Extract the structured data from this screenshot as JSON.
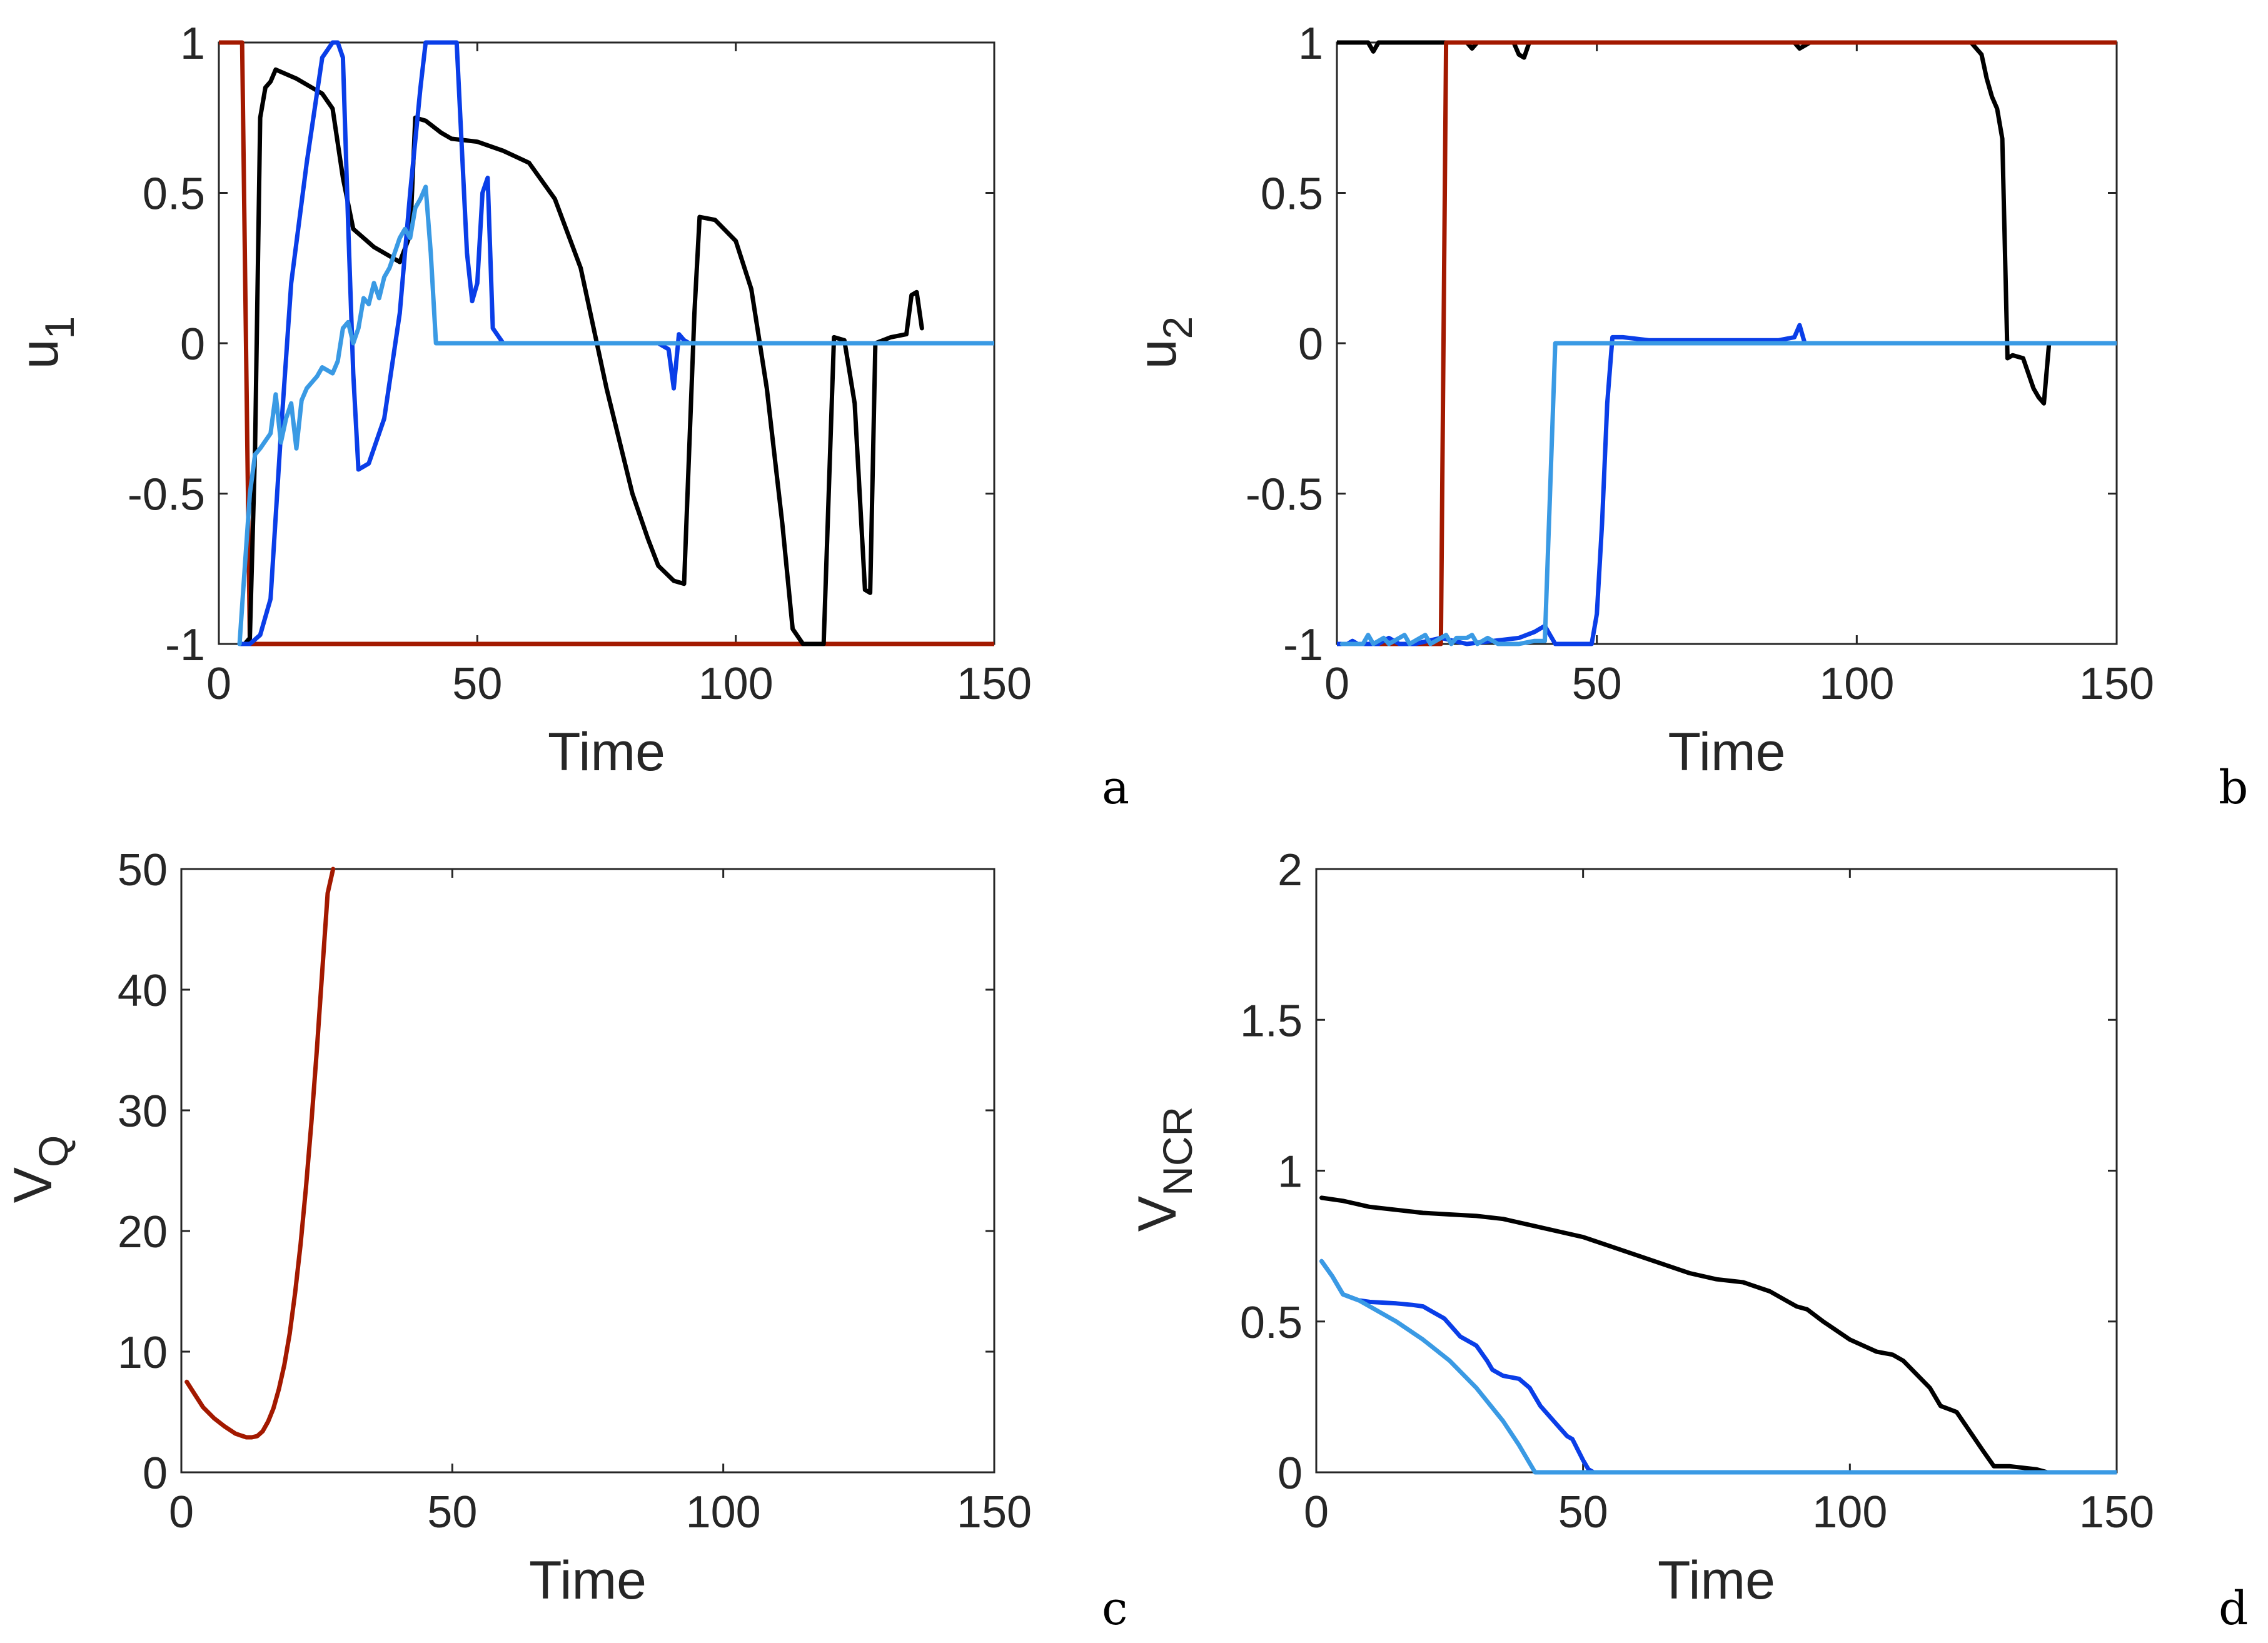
{
  "colors": {
    "black": "#000000",
    "red": "#a31900",
    "blue": "#0a3ee8",
    "lightblue": "#3a9ae4"
  },
  "chart_data": [
    {
      "panel": "a",
      "type": "line",
      "xlabel": "Time",
      "ylabel": "u",
      "ylabel_sub": "1",
      "xlim": [
        0,
        150
      ],
      "ylim": [
        -1,
        1
      ],
      "xticks": [
        "0",
        "50",
        "100",
        "150"
      ],
      "yticks": [
        "-1",
        "-0.5",
        "0",
        "0.5",
        "1"
      ],
      "series": [
        {
          "name": "red",
          "color": "#a31900",
          "x": [
            0,
            4.5,
            6,
            150
          ],
          "y": [
            1,
            1,
            -1,
            -1
          ]
        },
        {
          "name": "black",
          "color": "#000000",
          "x": [
            5,
            6,
            7,
            8,
            9,
            10,
            11,
            15,
            20,
            22,
            24,
            26,
            30,
            33,
            35,
            37,
            38,
            40,
            43,
            45,
            50,
            55,
            60,
            65,
            70,
            75,
            80,
            83,
            85,
            88,
            90,
            92,
            93,
            96,
            100,
            103,
            106,
            109,
            111,
            113,
            115,
            117,
            119,
            121,
            123,
            125,
            126,
            127,
            130,
            133,
            134,
            135,
            136
          ],
          "y": [
            -1,
            -0.98,
            -0.35,
            0.75,
            0.85,
            0.87,
            0.91,
            0.88,
            0.83,
            0.78,
            0.55,
            0.38,
            0.32,
            0.29,
            0.27,
            0.36,
            0.75,
            0.74,
            0.7,
            0.68,
            0.67,
            0.64,
            0.6,
            0.48,
            0.25,
            -0.15,
            -0.5,
            -0.65,
            -0.74,
            -0.79,
            -0.8,
            0.1,
            0.42,
            0.41,
            0.34,
            0.18,
            -0.15,
            -0.6,
            -0.95,
            -1.0,
            -1.0,
            -1.0,
            0.02,
            0.01,
            -0.2,
            -0.82,
            -0.83,
            0.0,
            0.02,
            0.03,
            0.16,
            0.17,
            0.05
          ]
        },
        {
          "name": "blue",
          "color": "#0a3ee8",
          "x": [
            4,
            6,
            8,
            10,
            12,
            14,
            17,
            20,
            22,
            23,
            24,
            25,
            26,
            27,
            28,
            29,
            30,
            32,
            35,
            37,
            39,
            40,
            41,
            42,
            45,
            46,
            48,
            49,
            50,
            51,
            52,
            53,
            55,
            60,
            70,
            80,
            85,
            87,
            88,
            89,
            90,
            91,
            92,
            100,
            150
          ],
          "y": [
            -1,
            -1,
            -0.97,
            -0.85,
            -0.3,
            0.2,
            0.6,
            0.95,
            1.0,
            1.0,
            0.95,
            0.4,
            -0.1,
            -0.42,
            -0.41,
            -0.4,
            -0.35,
            -0.25,
            0.1,
            0.5,
            0.85,
            1.0,
            1.0,
            1.0,
            1.0,
            1.0,
            0.3,
            0.14,
            0.2,
            0.5,
            0.55,
            0.05,
            0.0,
            0.0,
            0.0,
            0.0,
            0.0,
            -0.02,
            -0.15,
            0.03,
            0.01,
            0.0,
            0.0,
            0.0,
            0.0
          ]
        },
        {
          "name": "lightblue",
          "color": "#3a9ae4",
          "x": [
            4,
            5,
            6,
            7,
            8,
            10,
            11,
            12,
            13,
            14,
            15,
            16,
            17,
            18,
            19,
            20,
            21,
            22,
            23,
            24,
            25,
            26,
            27,
            28,
            29,
            30,
            31,
            32,
            33,
            34,
            35,
            36,
            37,
            38,
            39,
            40,
            41,
            42,
            43,
            150
          ],
          "y": [
            -1,
            -0.75,
            -0.5,
            -0.37,
            -0.35,
            -0.3,
            -0.17,
            -0.33,
            -0.25,
            -0.2,
            -0.35,
            -0.19,
            -0.15,
            -0.13,
            -0.11,
            -0.08,
            -0.09,
            -0.1,
            -0.06,
            0.05,
            0.07,
            0.0,
            0.05,
            0.15,
            0.13,
            0.2,
            0.15,
            0.22,
            0.25,
            0.3,
            0.35,
            0.38,
            0.35,
            0.45,
            0.48,
            0.52,
            0.3,
            0.0,
            0.0,
            0.0
          ]
        }
      ]
    },
    {
      "panel": "b",
      "type": "line",
      "xlabel": "Time",
      "ylabel": "u",
      "ylabel_sub": "2",
      "xlim": [
        0,
        150
      ],
      "ylim": [
        -1,
        1
      ],
      "xticks": [
        "0",
        "50",
        "100",
        "150"
      ],
      "yticks": [
        "-1",
        "-0.5",
        "0",
        "0.5",
        "1"
      ],
      "series": [
        {
          "name": "black",
          "color": "#000000",
          "x": [
            0,
            6,
            7,
            8,
            9,
            25,
            26,
            27,
            34,
            35,
            36,
            37,
            88,
            89,
            90,
            91,
            122,
            124,
            125,
            126,
            127,
            128,
            129,
            130,
            132,
            133,
            134,
            135,
            136,
            137
          ],
          "y": [
            1,
            1,
            0.97,
            1,
            1,
            1,
            0.98,
            1,
            1,
            0.96,
            0.95,
            1,
            1,
            0.98,
            0.99,
            1,
            1,
            0.96,
            0.88,
            0.82,
            0.78,
            0.68,
            -0.05,
            -0.04,
            -0.05,
            -0.1,
            -0.15,
            -0.18,
            -0.2,
            0.0
          ]
        },
        {
          "name": "red",
          "color": "#a31900",
          "x": [
            0,
            20,
            21,
            150
          ],
          "y": [
            -1,
            -1,
            1,
            1
          ]
        },
        {
          "name": "blue",
          "color": "#0a3ee8",
          "x": [
            0,
            2,
            3,
            4,
            8,
            10,
            12,
            15,
            20,
            25,
            30,
            35,
            38,
            40,
            41,
            42,
            48,
            49,
            50,
            51,
            52,
            53,
            55,
            60,
            85,
            88,
            89,
            90,
            150
          ],
          "y": [
            -1,
            -1,
            -0.99,
            -1,
            -1,
            -0.98,
            -1,
            -1,
            -0.98,
            -1,
            -0.99,
            -0.98,
            -0.96,
            -0.94,
            -0.97,
            -1,
            -1,
            -1,
            -0.9,
            -0.6,
            -0.2,
            0.02,
            0.02,
            0.01,
            0.01,
            0.02,
            0.06,
            0.0,
            0.0
          ]
        },
        {
          "name": "lightblue",
          "color": "#3a9ae4",
          "x": [
            1,
            5,
            6,
            7,
            9,
            10,
            11,
            13,
            14,
            15,
            17,
            18,
            19,
            21,
            22,
            23,
            25,
            26,
            27,
            29,
            30,
            31,
            33,
            35,
            38,
            40,
            41,
            42,
            150
          ],
          "y": [
            -1,
            -1,
            -0.97,
            -1,
            -0.98,
            -1,
            -0.99,
            -0.97,
            -1,
            -0.99,
            -0.97,
            -1,
            -0.99,
            -0.97,
            -1,
            -0.98,
            -0.98,
            -0.97,
            -1,
            -0.98,
            -0.99,
            -1,
            -1,
            -1,
            -0.99,
            -0.99,
            -0.5,
            0.0,
            0.0
          ]
        }
      ]
    },
    {
      "panel": "c",
      "type": "line",
      "xlabel": "Time",
      "ylabel": "V",
      "ylabel_sub": "Q",
      "xlim": [
        0,
        150
      ],
      "ylim": [
        0,
        50
      ],
      "xticks": [
        "0",
        "50",
        "100",
        "150"
      ],
      "yticks": [
        "0",
        "10",
        "20",
        "30",
        "40",
        "50"
      ],
      "series": [
        {
          "name": "red",
          "color": "#a31900",
          "x": [
            1,
            2,
            4,
            6,
            8,
            10,
            12,
            13,
            14,
            15,
            16,
            17,
            18,
            19,
            20,
            21,
            22,
            23,
            24,
            25,
            26,
            27,
            28
          ],
          "y": [
            7.5,
            6.8,
            5.4,
            4.5,
            3.8,
            3.2,
            2.9,
            2.9,
            3.0,
            3.4,
            4.2,
            5.3,
            6.9,
            8.9,
            11.5,
            14.9,
            18.9,
            23.6,
            29.0,
            35.0,
            41.5,
            48.0,
            50.0
          ]
        }
      ]
    },
    {
      "panel": "d",
      "type": "line",
      "xlabel": "Time",
      "ylabel": "V",
      "ylabel_sub": "NCR",
      "xlim": [
        0,
        150
      ],
      "ylim": [
        0,
        2
      ],
      "xticks": [
        "0",
        "50",
        "100",
        "150"
      ],
      "yticks": [
        "0",
        "0.5",
        "1",
        "1.5",
        "2"
      ],
      "series": [
        {
          "name": "black",
          "color": "#000000",
          "x": [
            1,
            5,
            10,
            15,
            20,
            25,
            30,
            35,
            40,
            45,
            50,
            55,
            60,
            65,
            70,
            75,
            80,
            85,
            88,
            90,
            92,
            95,
            100,
            105,
            108,
            110,
            115,
            117,
            120,
            125,
            127,
            130,
            135,
            137,
            150
          ],
          "y": [
            0.91,
            0.9,
            0.88,
            0.87,
            0.86,
            0.855,
            0.85,
            0.84,
            0.82,
            0.8,
            0.78,
            0.75,
            0.72,
            0.69,
            0.66,
            0.64,
            0.63,
            0.6,
            0.57,
            0.55,
            0.54,
            0.5,
            0.44,
            0.4,
            0.39,
            0.37,
            0.28,
            0.22,
            0.2,
            0.07,
            0.02,
            0.02,
            0.01,
            0.0,
            0.0
          ]
        },
        {
          "name": "blue",
          "color": "#0a3ee8",
          "x": [
            1,
            3,
            5,
            8,
            10,
            15,
            18,
            20,
            22,
            24,
            25,
            27,
            28,
            30,
            32,
            33,
            35,
            38,
            40,
            42,
            45,
            47,
            48,
            50,
            51,
            52,
            88
          ],
          "y": [
            0.7,
            0.65,
            0.59,
            0.57,
            0.565,
            0.56,
            0.555,
            0.55,
            0.53,
            0.51,
            0.49,
            0.45,
            0.44,
            0.42,
            0.37,
            0.34,
            0.32,
            0.31,
            0.28,
            0.22,
            0.16,
            0.12,
            0.11,
            0.04,
            0.01,
            0.0,
            0.0
          ]
        },
        {
          "name": "lightblue",
          "color": "#3a9ae4",
          "x": [
            1,
            3,
            5,
            8,
            10,
            15,
            20,
            25,
            30,
            35,
            38,
            40,
            41,
            150
          ],
          "y": [
            0.7,
            0.65,
            0.59,
            0.57,
            0.55,
            0.5,
            0.44,
            0.37,
            0.28,
            0.17,
            0.09,
            0.03,
            0.0,
            0.0
          ]
        }
      ]
    }
  ]
}
